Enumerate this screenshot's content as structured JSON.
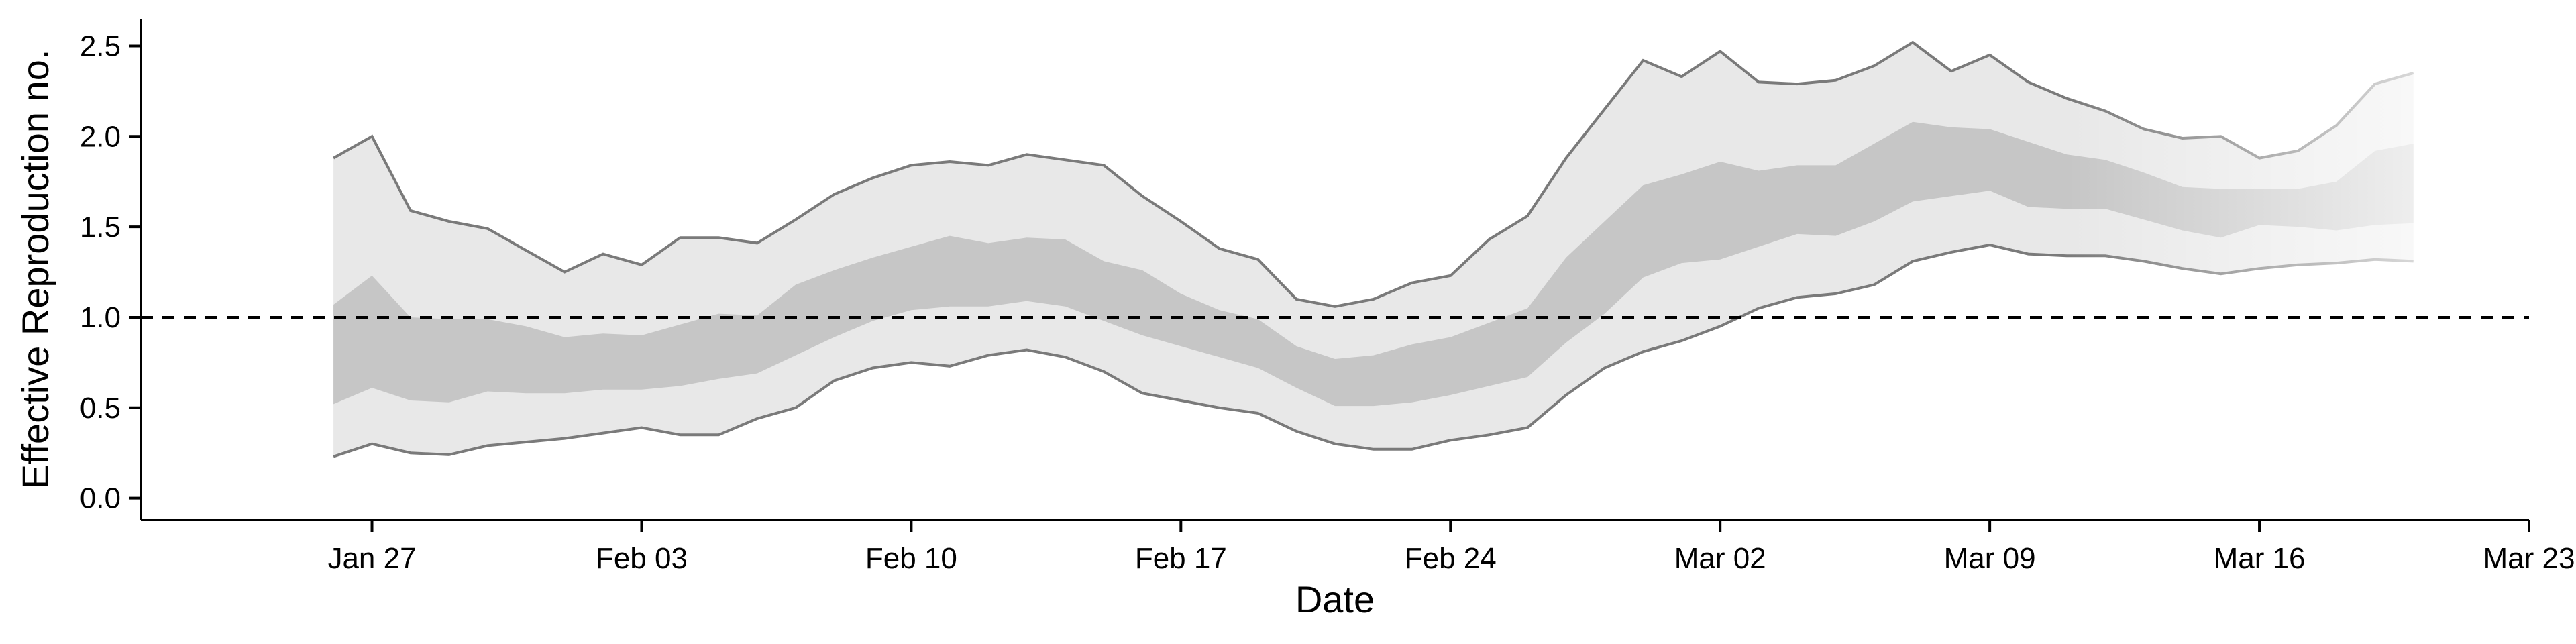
{
  "chart_data": {
    "type": "area",
    "xlabel": "Date",
    "ylabel": "Effective Reproduction no.",
    "xlim": [
      "2020-01-21",
      "2020-03-23"
    ],
    "ylim": [
      -0.12,
      2.65
    ],
    "x_ticks": [
      "2020-01-27",
      "2020-02-03",
      "2020-02-10",
      "2020-02-17",
      "2020-02-24",
      "2020-03-02",
      "2020-03-09",
      "2020-03-16",
      "2020-03-23"
    ],
    "x_tick_labels": [
      "Jan 27",
      "Feb 03",
      "Feb 10",
      "Feb 17",
      "Feb 24",
      "Mar 02",
      "Mar 09",
      "Mar 16",
      "Mar 23"
    ],
    "y_ticks": [
      0.0,
      0.5,
      1.0,
      1.5,
      2.0,
      2.5
    ],
    "y_tick_labels": [
      "0.0",
      "0.5",
      "1.0",
      "1.5",
      "2.0",
      "2.5"
    ],
    "reference_line": {
      "y": 1.0,
      "style": "dashed"
    },
    "grid": false,
    "legend": "none",
    "colors": {
      "outer_band": "#e8e8e8",
      "inner_band": "#c6c6c6",
      "band_edge": "#7a7a7a",
      "reference": "#000000"
    },
    "x": [
      "2020-01-26",
      "2020-01-27",
      "2020-01-28",
      "2020-01-29",
      "2020-01-30",
      "2020-01-31",
      "2020-02-01",
      "2020-02-02",
      "2020-02-03",
      "2020-02-04",
      "2020-02-05",
      "2020-02-06",
      "2020-02-07",
      "2020-02-08",
      "2020-02-09",
      "2020-02-10",
      "2020-02-11",
      "2020-02-12",
      "2020-02-13",
      "2020-02-14",
      "2020-02-15",
      "2020-02-16",
      "2020-02-17",
      "2020-02-18",
      "2020-02-19",
      "2020-02-20",
      "2020-02-21",
      "2020-02-22",
      "2020-02-23",
      "2020-02-24",
      "2020-02-25",
      "2020-02-26",
      "2020-02-27",
      "2020-02-28",
      "2020-02-29",
      "2020-03-01",
      "2020-03-02",
      "2020-03-03",
      "2020-03-04",
      "2020-03-05",
      "2020-03-06",
      "2020-03-07",
      "2020-03-08",
      "2020-03-09",
      "2020-03-10",
      "2020-03-11",
      "2020-03-12",
      "2020-03-13",
      "2020-03-14",
      "2020-03-15",
      "2020-03-16",
      "2020-03-17",
      "2020-03-18",
      "2020-03-19",
      "2020-03-20"
    ],
    "series": [
      {
        "band": "outer",
        "lower": [
          0.23,
          0.3,
          0.25,
          0.24,
          0.29,
          0.31,
          0.33,
          0.36,
          0.39,
          0.35,
          0.35,
          0.44,
          0.5,
          0.65,
          0.72,
          0.75,
          0.73,
          0.79,
          0.82,
          0.78,
          0.7,
          0.58,
          0.54,
          0.5,
          0.47,
          0.37,
          0.3,
          0.27,
          0.27,
          0.32,
          0.35,
          0.39,
          0.57,
          0.72,
          0.81,
          0.87,
          0.95,
          1.05,
          1.11,
          1.13,
          1.18,
          1.31,
          1.36,
          1.4,
          1.35,
          1.34,
          1.34,
          1.31,
          1.27,
          1.24,
          1.27,
          1.29,
          1.3,
          1.32,
          1.31
        ],
        "upper": [
          1.88,
          2.0,
          1.59,
          1.53,
          1.49,
          1.37,
          1.25,
          1.35,
          1.29,
          1.44,
          1.44,
          1.41,
          1.54,
          1.68,
          1.77,
          1.84,
          1.86,
          1.84,
          1.9,
          1.87,
          1.84,
          1.67,
          1.53,
          1.38,
          1.32,
          1.1,
          1.06,
          1.1,
          1.19,
          1.23,
          1.43,
          1.56,
          1.88,
          2.15,
          2.42,
          2.33,
          2.47,
          2.3,
          2.29,
          2.31,
          2.39,
          2.52,
          2.36,
          2.45,
          2.3,
          2.21,
          2.14,
          2.04,
          1.99,
          2.0,
          1.88,
          1.92,
          2.06,
          2.29,
          2.35
        ]
      },
      {
        "band": "inner",
        "lower": [
          0.52,
          0.61,
          0.54,
          0.53,
          0.59,
          0.58,
          0.58,
          0.6,
          0.6,
          0.62,
          0.66,
          0.69,
          0.79,
          0.89,
          0.98,
          1.04,
          1.06,
          1.06,
          1.09,
          1.06,
          0.98,
          0.9,
          0.84,
          0.78,
          0.72,
          0.61,
          0.51,
          0.51,
          0.53,
          0.57,
          0.62,
          0.67,
          0.86,
          1.02,
          1.22,
          1.3,
          1.32,
          1.39,
          1.46,
          1.45,
          1.53,
          1.64,
          1.67,
          1.7,
          1.61,
          1.6,
          1.6,
          1.54,
          1.48,
          1.44,
          1.51,
          1.5,
          1.48,
          1.51,
          1.52
        ],
        "upper": [
          1.07,
          1.23,
          1.0,
          0.99,
          0.99,
          0.95,
          0.89,
          0.91,
          0.9,
          0.96,
          1.02,
          1.01,
          1.18,
          1.26,
          1.33,
          1.39,
          1.45,
          1.41,
          1.44,
          1.43,
          1.31,
          1.26,
          1.13,
          1.04,
          0.99,
          0.84,
          0.77,
          0.79,
          0.85,
          0.89,
          0.97,
          1.05,
          1.33,
          1.53,
          1.73,
          1.79,
          1.86,
          1.81,
          1.84,
          1.84,
          1.96,
          2.08,
          2.05,
          2.04,
          1.97,
          1.9,
          1.87,
          1.8,
          1.72,
          1.71,
          1.71,
          1.71,
          1.75,
          1.92,
          1.96
        ]
      }
    ],
    "forecast_fade": {
      "from": "2020-03-11",
      "to": "2020-03-20"
    }
  }
}
